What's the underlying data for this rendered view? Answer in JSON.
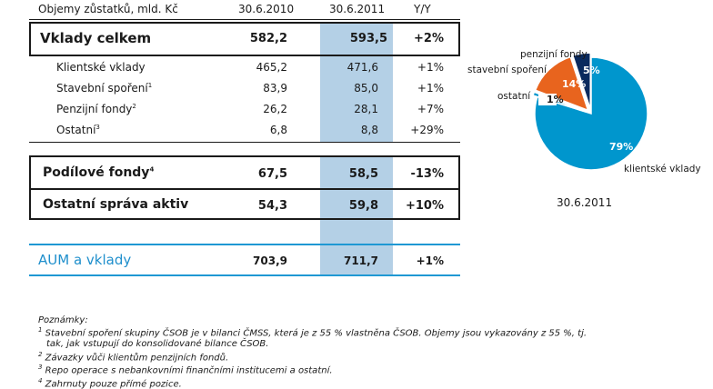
{
  "table": {
    "headers": {
      "label": "Objemy zůstatků, mld. Kč",
      "col1": "30.6.2010",
      "col2": "30.6.2011",
      "col3": "Y/Y"
    },
    "vklady": {
      "label": "Vklady celkem",
      "v2010": "582,2",
      "v2011": "593,5",
      "yy": "+2%"
    },
    "sub_rows": [
      {
        "label": "Klientské vklady",
        "sup": "",
        "v2010": "465,2",
        "v2011": "471,6",
        "yy": "+1%"
      },
      {
        "label": "Stavební spoření",
        "sup": "1",
        "v2010": "83,9",
        "v2011": "85,0",
        "yy": "+1%"
      },
      {
        "label": "Penzijní fondy",
        "sup": "2",
        "v2010": "26,2",
        "v2011": "28,1",
        "yy": "+7%"
      },
      {
        "label": "Ostatní",
        "sup": "3",
        "v2010": "6,8",
        "v2011": "8,8",
        "yy": "+29%"
      }
    ],
    "podilove": {
      "label": "Podílové fondy",
      "sup": "4",
      "v2010": "67,5",
      "v2011": "58,5",
      "yy": "-13%"
    },
    "ostatni_sprava": {
      "label": "Ostatní správa aktiv",
      "v2010": "54,3",
      "v2011": "59,8",
      "yy": "+10%"
    },
    "aum": {
      "label": "AUM a vklady",
      "v2010": "703,9",
      "v2011": "711,7",
      "yy": "+1%"
    }
  },
  "notes": {
    "title": "Poznámky:",
    "items": [
      {
        "num": "1",
        "text": "Stavební spoření skupiny ČSOB je v bilanci ČMSS, která je z 55 % vlastněna ČSOB. Objemy jsou vykazovány z 55 %, tj.",
        "cont": "tak, jak vstupují do konsolidované bilance ČSOB."
      },
      {
        "num": "2",
        "text": "Závazky vůči klientům penzijních fondů.",
        "cont": ""
      },
      {
        "num": "3",
        "text": "Repo operace s nebankovními finančními institucemi a ostatní.",
        "cont": ""
      },
      {
        "num": "4",
        "text": "Zahrnuty pouze přímé pozice.",
        "cont": ""
      }
    ]
  },
  "chart_data": {
    "type": "pie",
    "date_label": "30.6.2011",
    "slices": [
      {
        "name": "klientské vklady",
        "value": 79,
        "label": "79%",
        "color": "#0096cd"
      },
      {
        "name": "ostatní",
        "value": 1,
        "label": "1%",
        "color": "#0096cd"
      },
      {
        "name": "stavební spoření",
        "value": 14,
        "label": "14%",
        "color": "#e8641e"
      },
      {
        "name": "penzijní fondy",
        "value": 5,
        "label": "5%",
        "color": "#0a2a5e"
      }
    ]
  },
  "colors": {
    "highlight": "#b4d0e6",
    "accent_blue": "#1f8fcc",
    "orange": "#e8641e",
    "navy": "#0a2a5e"
  }
}
